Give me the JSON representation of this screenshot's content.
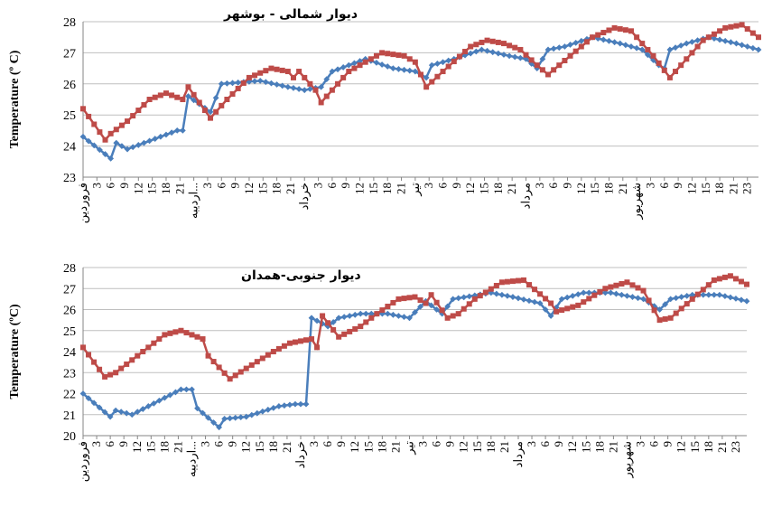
{
  "x_ticks": [
    "فروردین",
    "3",
    "6",
    "9",
    "12",
    "15",
    "18",
    "21",
    "اردیبه...",
    "3",
    "6",
    "9",
    "12",
    "15",
    "18",
    "21",
    "خرداد",
    "3",
    "6",
    "9",
    "12",
    "15",
    "18",
    "21",
    "تیر",
    "3",
    "6",
    "9",
    "12",
    "15",
    "18",
    "21",
    "مرداد",
    "3",
    "6",
    "9",
    "12",
    "15",
    "18",
    "21",
    "شهریور",
    "3",
    "6",
    "9",
    "12",
    "15",
    "18",
    "21",
    "23"
  ],
  "colors": {
    "blue": "#4a7ebb",
    "red": "#be4b48",
    "grid": "#bfbfbf",
    "axis": "#868686"
  },
  "chart_data": [
    {
      "type": "line",
      "title": "دیوار شمالی - بوشهر",
      "ylabel": "Temperature (º C)",
      "ylim": [
        23,
        28
      ],
      "yticks": [
        23,
        24,
        25,
        26,
        27,
        28
      ],
      "series": [
        {
          "color": "#4a7ebb",
          "keypoints": [
            [
              0,
              24.3
            ],
            [
              5,
              23.6
            ],
            [
              6,
              24.1
            ],
            [
              8,
              23.9
            ],
            [
              17,
              24.5
            ],
            [
              18,
              24.5
            ],
            [
              19,
              25.6
            ],
            [
              23,
              25.1
            ],
            [
              25,
              26.0
            ],
            [
              32,
              26.1
            ],
            [
              37,
              25.9
            ],
            [
              40,
              25.8
            ],
            [
              43,
              25.9
            ],
            [
              45,
              26.4
            ],
            [
              51,
              26.8
            ],
            [
              56,
              26.5
            ],
            [
              60,
              26.4
            ],
            [
              62,
              26.2
            ],
            [
              63,
              26.6
            ],
            [
              67,
              26.8
            ],
            [
              72,
              27.1
            ],
            [
              77,
              26.9
            ],
            [
              80,
              26.8
            ],
            [
              82,
              26.5
            ],
            [
              84,
              27.1
            ],
            [
              87,
              27.2
            ],
            [
              92,
              27.5
            ],
            [
              97,
              27.3
            ],
            [
              101,
              27.1
            ],
            [
              104,
              26.6
            ],
            [
              105,
              26.5
            ],
            [
              106,
              27.1
            ],
            [
              109,
              27.3
            ],
            [
              113,
              27.5
            ],
            [
              118,
              27.3
            ],
            [
              122,
              27.1
            ]
          ]
        },
        {
          "color": "#be4b48",
          "keypoints": [
            [
              0,
              25.2
            ],
            [
              4,
              24.2
            ],
            [
              5,
              24.4
            ],
            [
              8,
              24.8
            ],
            [
              12,
              25.5
            ],
            [
              15,
              25.7
            ],
            [
              18,
              25.5
            ],
            [
              19,
              25.9
            ],
            [
              23,
              24.9
            ],
            [
              26,
              25.5
            ],
            [
              30,
              26.2
            ],
            [
              34,
              26.5
            ],
            [
              37,
              26.4
            ],
            [
              38,
              26.2
            ],
            [
              39,
              26.4
            ],
            [
              42,
              25.8
            ],
            [
              43,
              25.4
            ],
            [
              48,
              26.4
            ],
            [
              54,
              27.0
            ],
            [
              58,
              26.9
            ],
            [
              60,
              26.7
            ],
            [
              62,
              25.9
            ],
            [
              65,
              26.4
            ],
            [
              70,
              27.2
            ],
            [
              73,
              27.4
            ],
            [
              76,
              27.3
            ],
            [
              79,
              27.1
            ],
            [
              82,
              26.6
            ],
            [
              84,
              26.3
            ],
            [
              88,
              26.9
            ],
            [
              92,
              27.5
            ],
            [
              96,
              27.8
            ],
            [
              99,
              27.7
            ],
            [
              103,
              26.9
            ],
            [
              106,
              26.2
            ],
            [
              108,
              26.6
            ],
            [
              112,
              27.4
            ],
            [
              116,
              27.8
            ],
            [
              119,
              27.9
            ],
            [
              122,
              27.5
            ]
          ]
        }
      ]
    },
    {
      "type": "line",
      "title": "دیوار جنوبی-همدان",
      "ylabel": "Temperature (ºC)",
      "ylim": [
        20,
        28
      ],
      "yticks": [
        20,
        21,
        22,
        23,
        24,
        25,
        26,
        27,
        28
      ],
      "series": [
        {
          "color": "#4a7ebb",
          "keypoints": [
            [
              0,
              22.0
            ],
            [
              5,
              20.9
            ],
            [
              6,
              21.2
            ],
            [
              9,
              21.0
            ],
            [
              15,
              21.8
            ],
            [
              18,
              22.2
            ],
            [
              20,
              22.2
            ],
            [
              21,
              21.3
            ],
            [
              25,
              20.4
            ],
            [
              26,
              20.8
            ],
            [
              30,
              20.9
            ],
            [
              36,
              21.4
            ],
            [
              39,
              21.5
            ],
            [
              41,
              21.5
            ],
            [
              42,
              25.6
            ],
            [
              45,
              25.2
            ],
            [
              47,
              25.6
            ],
            [
              51,
              25.8
            ],
            [
              56,
              25.8
            ],
            [
              60,
              25.6
            ],
            [
              63,
              26.4
            ],
            [
              66,
              25.8
            ],
            [
              68,
              26.5
            ],
            [
              75,
              26.8
            ],
            [
              79,
              26.6
            ],
            [
              84,
              26.3
            ],
            [
              86,
              25.7
            ],
            [
              88,
              26.5
            ],
            [
              92,
              26.8
            ],
            [
              97,
              26.8
            ],
            [
              103,
              26.5
            ],
            [
              106,
              26.0
            ],
            [
              108,
              26.5
            ],
            [
              112,
              26.7
            ],
            [
              117,
              26.7
            ],
            [
              122,
              26.4
            ]
          ]
        },
        {
          "color": "#be4b48",
          "keypoints": [
            [
              0,
              24.2
            ],
            [
              4,
              22.8
            ],
            [
              6,
              23.0
            ],
            [
              10,
              23.8
            ],
            [
              15,
              24.8
            ],
            [
              18,
              25.0
            ],
            [
              22,
              24.6
            ],
            [
              23,
              23.8
            ],
            [
              27,
              22.7
            ],
            [
              30,
              23.2
            ],
            [
              35,
              24.0
            ],
            [
              38,
              24.4
            ],
            [
              42,
              24.6
            ],
            [
              43,
              24.2
            ],
            [
              44,
              25.7
            ],
            [
              47,
              24.7
            ],
            [
              51,
              25.2
            ],
            [
              54,
              25.8
            ],
            [
              58,
              26.5
            ],
            [
              61,
              26.6
            ],
            [
              63,
              26.3
            ],
            [
              64,
              26.7
            ],
            [
              67,
              25.6
            ],
            [
              69,
              25.8
            ],
            [
              72,
              26.5
            ],
            [
              77,
              27.3
            ],
            [
              81,
              27.4
            ],
            [
              86,
              26.3
            ],
            [
              87,
              25.9
            ],
            [
              91,
              26.2
            ],
            [
              96,
              27.0
            ],
            [
              100,
              27.3
            ],
            [
              103,
              26.9
            ],
            [
              106,
              25.5
            ],
            [
              108,
              25.6
            ],
            [
              112,
              26.5
            ],
            [
              116,
              27.4
            ],
            [
              119,
              27.6
            ],
            [
              122,
              27.2
            ]
          ]
        }
      ]
    }
  ]
}
